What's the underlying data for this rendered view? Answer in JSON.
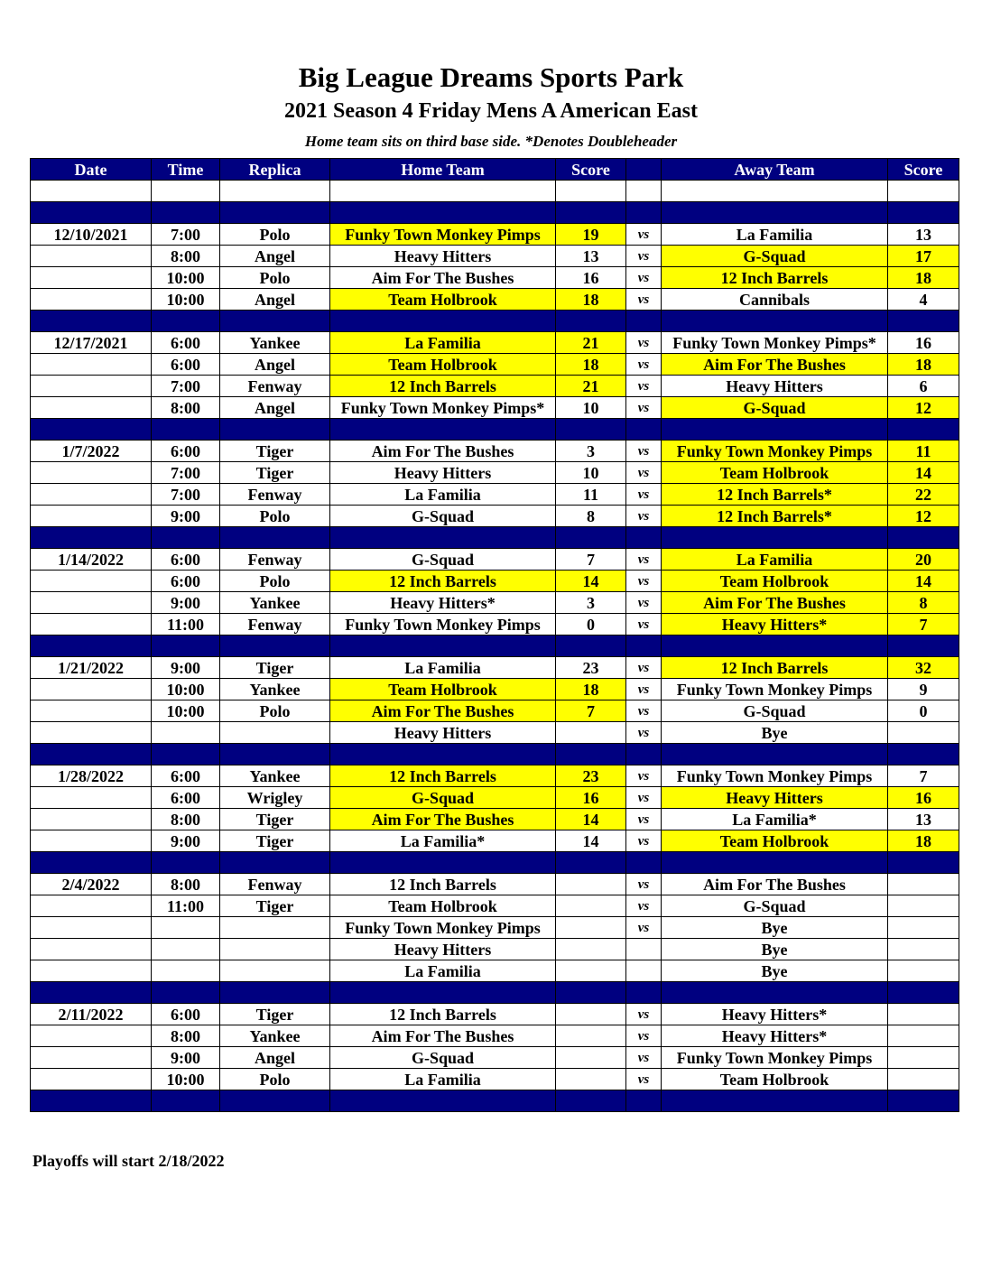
{
  "header": {
    "title": "Big League Dreams Sports Park",
    "subtitle": "2021 Season 4 Friday Mens A American East",
    "note": "Home team sits on third base side.  *Denotes Doubleheader"
  },
  "colors": {
    "header_bg": "#000080",
    "winner_highlight": "#ffff00"
  },
  "columns": [
    "Date",
    "Time",
    "Replica",
    "Home Team",
    "Score",
    "",
    "Away Team",
    "Score"
  ],
  "weeks": [
    {
      "date": "12/10/2021",
      "games": [
        {
          "time": "7:00",
          "field": "Polo",
          "home": "Funky Town Monkey Pimps",
          "home_score": "19",
          "vs": "vs",
          "away": "La Familia",
          "away_score": "13",
          "home_win": true,
          "away_win": false
        },
        {
          "time": "8:00",
          "field": "Angel",
          "home": "Heavy Hitters",
          "home_score": "13",
          "vs": "vs",
          "away": "G-Squad",
          "away_score": "17",
          "home_win": false,
          "away_win": true
        },
        {
          "time": "10:00",
          "field": "Polo",
          "home": "Aim For The Bushes",
          "home_score": "16",
          "vs": "vs",
          "away": "12 Inch Barrels",
          "away_score": "18",
          "home_win": false,
          "away_win": true
        },
        {
          "time": "10:00",
          "field": "Angel",
          "home": "Team Holbrook",
          "home_score": "18",
          "vs": "vs",
          "away": "Cannibals",
          "away_score": "4",
          "home_win": true,
          "away_win": false
        }
      ]
    },
    {
      "date": "12/17/2021",
      "games": [
        {
          "time": "6:00",
          "field": "Yankee",
          "home": "La Familia",
          "home_score": "21",
          "vs": "vs",
          "away": "Funky Town Monkey Pimps*",
          "away_score": "16",
          "home_win": true,
          "away_win": false
        },
        {
          "time": "6:00",
          "field": "Angel",
          "home": "Team Holbrook",
          "home_score": "18",
          "vs": "vs",
          "away": "Aim For The Bushes",
          "away_score": "18",
          "home_win": true,
          "away_win": true
        },
        {
          "time": "7:00",
          "field": "Fenway",
          "home": "12 Inch Barrels",
          "home_score": "21",
          "vs": "vs",
          "away": "Heavy Hitters",
          "away_score": "6",
          "home_win": true,
          "away_win": false
        },
        {
          "time": "8:00",
          "field": "Angel",
          "home": "Funky Town Monkey Pimps*",
          "home_score": "10",
          "vs": "vs",
          "away": "G-Squad",
          "away_score": "12",
          "home_win": false,
          "away_win": true
        }
      ]
    },
    {
      "date": "1/7/2022",
      "games": [
        {
          "time": "6:00",
          "field": "Tiger",
          "home": "Aim For The Bushes",
          "home_score": "3",
          "vs": "vs",
          "away": "Funky Town Monkey Pimps",
          "away_score": "11",
          "home_win": false,
          "away_win": true
        },
        {
          "time": "7:00",
          "field": "Tiger",
          "home": "Heavy Hitters",
          "home_score": "10",
          "vs": "vs",
          "away": "Team Holbrook",
          "away_score": "14",
          "home_win": false,
          "away_win": true
        },
        {
          "time": "7:00",
          "field": "Fenway",
          "home": "La Familia",
          "home_score": "11",
          "vs": "vs",
          "away": "12 Inch Barrels*",
          "away_score": "22",
          "home_win": false,
          "away_win": true
        },
        {
          "time": "9:00",
          "field": "Polo",
          "home": "G-Squad",
          "home_score": "8",
          "vs": "vs",
          "away": "12 Inch Barrels*",
          "away_score": "12",
          "home_win": false,
          "away_win": true
        }
      ]
    },
    {
      "date": "1/14/2022",
      "games": [
        {
          "time": "6:00",
          "field": "Fenway",
          "home": "G-Squad",
          "home_score": "7",
          "vs": "vs",
          "away": "La Familia",
          "away_score": "20",
          "home_win": false,
          "away_win": true
        },
        {
          "time": "6:00",
          "field": "Polo",
          "home": "12 Inch Barrels",
          "home_score": "14",
          "vs": "vs",
          "away": "Team Holbrook",
          "away_score": "14",
          "home_win": true,
          "away_win": true
        },
        {
          "time": "9:00",
          "field": "Yankee",
          "home": "Heavy Hitters*",
          "home_score": "3",
          "vs": "vs",
          "away": "Aim For The Bushes",
          "away_score": "8",
          "home_win": false,
          "away_win": true
        },
        {
          "time": "11:00",
          "field": "Fenway",
          "home": "Funky Town Monkey Pimps",
          "home_score": "0",
          "vs": "vs",
          "away": "Heavy Hitters*",
          "away_score": "7",
          "home_win": false,
          "away_win": true
        }
      ]
    },
    {
      "date": "1/21/2022",
      "games": [
        {
          "time": "9:00",
          "field": "Tiger",
          "home": "La Familia",
          "home_score": "23",
          "vs": "vs",
          "away": "12 Inch Barrels",
          "away_score": "32",
          "home_win": false,
          "away_win": true
        },
        {
          "time": "10:00",
          "field": "Yankee",
          "home": "Team Holbrook",
          "home_score": "18",
          "vs": "vs",
          "away": "Funky Town Monkey Pimps",
          "away_score": "9",
          "home_win": true,
          "away_win": false
        },
        {
          "time": "10:00",
          "field": "Polo",
          "home": "Aim For The Bushes",
          "home_score": "7",
          "vs": "vs",
          "away": "G-Squad",
          "away_score": "0",
          "home_win": true,
          "away_win": false
        },
        {
          "time": "",
          "field": "",
          "home": "Heavy Hitters",
          "home_score": "",
          "vs": "vs",
          "away": "Bye",
          "away_score": "",
          "home_win": false,
          "away_win": false
        }
      ]
    },
    {
      "date": "1/28/2022",
      "games": [
        {
          "time": "6:00",
          "field": "Yankee",
          "home": "12 Inch Barrels",
          "home_score": "23",
          "vs": "vs",
          "away": "Funky Town Monkey Pimps",
          "away_score": "7",
          "home_win": true,
          "away_win": false
        },
        {
          "time": "6:00",
          "field": "Wrigley",
          "home": "G-Squad",
          "home_score": "16",
          "vs": "vs",
          "away": "Heavy Hitters",
          "away_score": "16",
          "home_win": true,
          "away_win": true
        },
        {
          "time": "8:00",
          "field": "Tiger",
          "home": "Aim For The Bushes",
          "home_score": "14",
          "vs": "vs",
          "away": "La Familia*",
          "away_score": "13",
          "home_win": true,
          "away_win": false
        },
        {
          "time": "9:00",
          "field": "Tiger",
          "home": "La Familia*",
          "home_score": "14",
          "vs": "vs",
          "away": "Team Holbrook",
          "away_score": "18",
          "home_win": false,
          "away_win": true
        }
      ]
    },
    {
      "date": "2/4/2022",
      "games": [
        {
          "time": "8:00",
          "field": "Fenway",
          "home": "12 Inch Barrels",
          "home_score": "",
          "vs": "vs",
          "away": "Aim For The Bushes",
          "away_score": "",
          "home_win": false,
          "away_win": false
        },
        {
          "time": "11:00",
          "field": "Tiger",
          "home": "Team Holbrook",
          "home_score": "",
          "vs": "vs",
          "away": "G-Squad",
          "away_score": "",
          "home_win": false,
          "away_win": false
        },
        {
          "time": "",
          "field": "",
          "home": "Funky Town Monkey Pimps",
          "home_score": "",
          "vs": "vs",
          "away": "Bye",
          "away_score": "",
          "home_win": false,
          "away_win": false
        },
        {
          "time": "",
          "field": "",
          "home": "Heavy Hitters",
          "home_score": "",
          "vs": "",
          "away": "Bye",
          "away_score": "",
          "home_win": false,
          "away_win": false
        },
        {
          "time": "",
          "field": "",
          "home": "La Familia",
          "home_score": "",
          "vs": "",
          "away": "Bye",
          "away_score": "",
          "home_win": false,
          "away_win": false
        }
      ]
    },
    {
      "date": "2/11/2022",
      "games": [
        {
          "time": "6:00",
          "field": "Tiger",
          "home": "12 Inch Barrels",
          "home_score": "",
          "vs": "vs",
          "away": "Heavy Hitters*",
          "away_score": "",
          "home_win": false,
          "away_win": false
        },
        {
          "time": "8:00",
          "field": "Yankee",
          "home": "Aim For The Bushes",
          "home_score": "",
          "vs": "vs",
          "away": "Heavy Hitters*",
          "away_score": "",
          "home_win": false,
          "away_win": false
        },
        {
          "time": "9:00",
          "field": "Angel",
          "home": "G-Squad",
          "home_score": "",
          "vs": "vs",
          "away": "Funky Town Monkey Pimps",
          "away_score": "",
          "home_win": false,
          "away_win": false
        },
        {
          "time": "10:00",
          "field": "Polo",
          "home": "La Familia",
          "home_score": "",
          "vs": "vs",
          "away": "Team Holbrook",
          "away_score": "",
          "home_win": false,
          "away_win": false
        }
      ]
    }
  ],
  "footer": "Playoffs will start 2/18/2022"
}
